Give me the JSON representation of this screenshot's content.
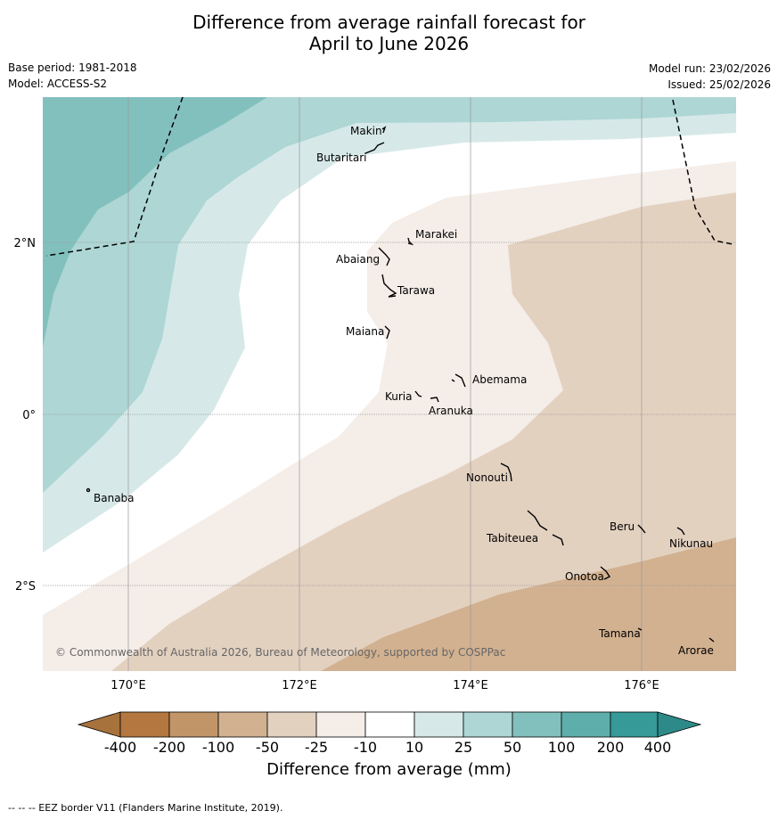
{
  "header": {
    "title_line1": "Difference from average rainfall forecast for",
    "title_line2": "April to June 2026",
    "base_period": "Base period: 1981-2018",
    "model": "Model: ACCESS-S2",
    "model_run": "Model run: 23/02/2026",
    "issued": "Issued: 25/02/2026"
  },
  "axes": {
    "lat_labels": [
      "2°N",
      "0°",
      "2°S"
    ],
    "lon_labels": [
      "170°E",
      "172°E",
      "174°E",
      "176°E"
    ]
  },
  "places": [
    {
      "name": "Makin"
    },
    {
      "name": "Butaritari"
    },
    {
      "name": "Marakei"
    },
    {
      "name": "Abaiang"
    },
    {
      "name": "Tarawa"
    },
    {
      "name": "Maiana"
    },
    {
      "name": "Abemama"
    },
    {
      "name": "Kuria"
    },
    {
      "name": "Aranuka"
    },
    {
      "name": "Banaba"
    },
    {
      "name": "Nonouti"
    },
    {
      "name": "Tabiteuea"
    },
    {
      "name": "Beru"
    },
    {
      "name": "Nikunau"
    },
    {
      "name": "Onotoa"
    },
    {
      "name": "Tamana"
    },
    {
      "name": "Arorae"
    }
  ],
  "copyright": "© Commonwealth of Australia 2026, Bureau of Meteorology, supported by COSPPac",
  "colorbar": {
    "title": "Difference from average (mm)",
    "tick_labels": [
      "-400",
      "-200",
      "-100",
      "-50",
      "-25",
      "-10",
      "10",
      "25",
      "50",
      "100",
      "200",
      "400"
    ],
    "colors": {
      "below_400": "#a8723c",
      "n400_n200": "#b3773f",
      "n200_n100": "#c29568",
      "n100_n50": "#d2b190",
      "n50_n25": "#e3d1c0",
      "n25_n10": "#f4ede8",
      "n10_10": "#ffffff",
      "p10_25": "#d6e9e8",
      "p25_50": "#add6d5",
      "p50_100": "#82c0be",
      "p100_200": "#5eaeac",
      "p200_400": "#359a98",
      "above_400": "#2d8a88"
    }
  },
  "footnote": "--  --  -- EEZ border V11 (Flanders Marine Institute, 2019)."
}
